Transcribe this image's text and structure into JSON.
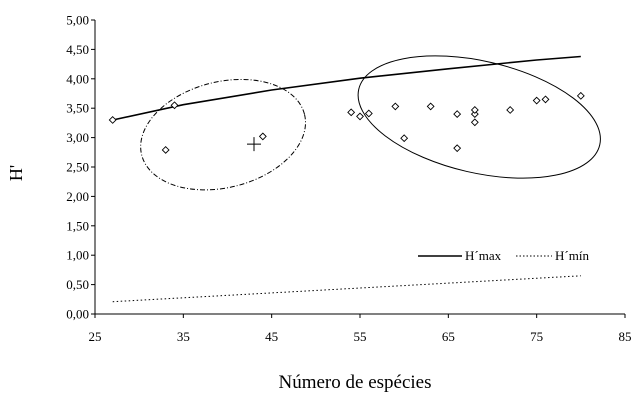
{
  "chart_data": {
    "type": "scatter",
    "xlabel": "Número de espécies",
    "ylabel": "H'",
    "xlim": [
      25,
      85
    ],
    "ylim": [
      0,
      5
    ],
    "x_ticks": [
      "25",
      "35",
      "45",
      "55",
      "65",
      "75",
      "85"
    ],
    "y_ticks": [
      "0,00",
      "0,50",
      "1,00",
      "1,50",
      "2,00",
      "2,50",
      "3,00",
      "3,50",
      "4,00",
      "4,50",
      "5,00"
    ],
    "legend_position": "inside-lower-right",
    "series": [
      {
        "name": "H´max",
        "style": "solid-line",
        "color": "#000000",
        "points": [
          [
            27,
            3.3
          ],
          [
            35,
            3.56
          ],
          [
            45,
            3.81
          ],
          [
            55,
            4.01
          ],
          [
            65,
            4.17
          ],
          [
            75,
            4.32
          ],
          [
            80,
            4.38
          ]
        ]
      },
      {
        "name": "H´mín",
        "style": "dotted-line",
        "color": "#000000",
        "points": [
          [
            27,
            0.21
          ],
          [
            80,
            0.65
          ]
        ]
      },
      {
        "style": "diamond-markers",
        "color": "#000000",
        "points": [
          [
            27,
            3.3
          ],
          [
            33,
            2.79
          ],
          [
            34,
            3.55
          ],
          [
            44,
            3.02
          ],
          [
            54,
            3.43
          ],
          [
            55,
            3.36
          ],
          [
            56,
            3.41
          ],
          [
            59,
            3.53
          ],
          [
            60,
            2.99
          ],
          [
            63,
            3.53
          ],
          [
            66,
            2.82
          ],
          [
            66,
            3.4
          ],
          [
            68,
            3.4
          ],
          [
            68,
            3.47
          ],
          [
            68,
            3.26
          ],
          [
            72,
            3.47
          ],
          [
            75,
            3.63
          ],
          [
            76,
            3.65
          ],
          [
            80,
            3.71
          ]
        ]
      },
      {
        "style": "plus-marker",
        "color": "#000000",
        "points": [
          [
            43,
            2.89
          ]
        ]
      }
    ],
    "annotations": [
      {
        "shape": "ellipse",
        "style": "dash-dot",
        "cx": 39.5,
        "cy": 3.05,
        "rx": 9.5,
        "ry": 0.9,
        "rotation_deg": 14
      },
      {
        "shape": "ellipse",
        "style": "solid",
        "cx": 68.5,
        "cy": 3.35,
        "rx": 14,
        "ry": 0.95,
        "rotation_deg": -13
      }
    ]
  }
}
